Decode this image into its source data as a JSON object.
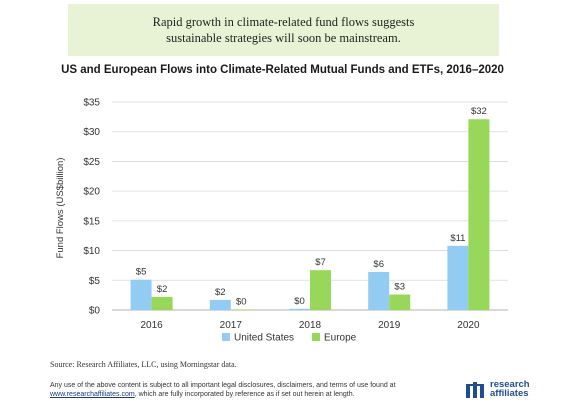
{
  "banner": {
    "line1": "Rapid growth in climate-related fund flows suggests",
    "line2": "sustainable strategies will soon be mainstream."
  },
  "footer": {
    "source": "Source: Research Affiliates, LLC, using Morningstar data.",
    "disclaimer_line1": "Any use of the above content is subject to all important legal disclosures, disclaimers, and terms of use found at",
    "disclaimer_link": "www.researchaffiliates.com",
    "disclaimer_line2_rest": ", which are fully incorporated by reference as if set out herein at length.",
    "logo_line1": "research",
    "logo_line2": "affiliates"
  },
  "colors": {
    "united_states": "#93ccf2",
    "europe": "#97d85a",
    "gridline": "#d9d9d9",
    "banner_bg": "#e8f3d6"
  },
  "chart_data": {
    "type": "bar",
    "title": "US and European Flows into Climate-Related Mutual Funds and ETFs, 2016–2020",
    "ylabel": "Fund Flows (US$billion)",
    "xlabel": "",
    "categories": [
      "2016",
      "2017",
      "2018",
      "2019",
      "2020"
    ],
    "ylim": [
      0,
      35
    ],
    "yticks": [
      0,
      5,
      10,
      15,
      20,
      25,
      30,
      35
    ],
    "ytick_labels": [
      "$0",
      "$5",
      "$10",
      "$15",
      "$20",
      "$25",
      "$30",
      "$35"
    ],
    "grid": true,
    "legend_position": "bottom",
    "series": [
      {
        "name": "United States",
        "values": [
          5.1,
          1.7,
          0.2,
          6.4,
          10.8
        ],
        "labels": [
          "$5",
          "$2",
          "$0",
          "$6",
          "$11"
        ]
      },
      {
        "name": "Europe",
        "values": [
          2.2,
          0.1,
          6.7,
          2.6,
          32.1
        ],
        "labels": [
          "$2",
          "$0",
          "$7",
          "$3",
          "$32"
        ]
      }
    ]
  }
}
